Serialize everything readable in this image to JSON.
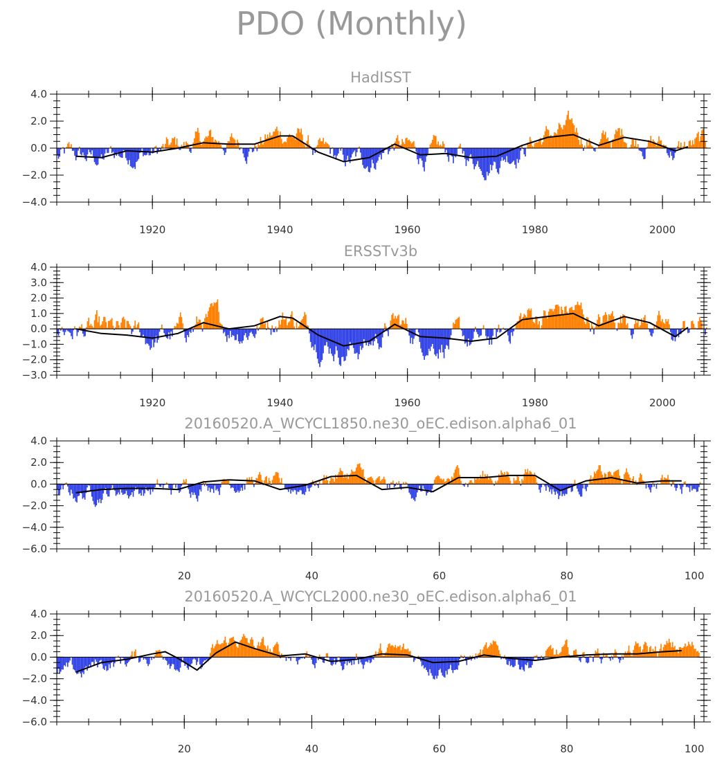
{
  "figure": {
    "title": "PDO (Monthly)"
  },
  "colors": {
    "positive": "#ff8000",
    "negative": "#3344e6",
    "smooth": "#000000"
  },
  "chart_data": [
    {
      "type": "bar",
      "title": "HadISST",
      "x_label_ticks": [
        "1920",
        "1940",
        "1960",
        "1980",
        "2000"
      ],
      "x_label_values": [
        1920,
        1940,
        1960,
        1980,
        2000
      ],
      "xlim": [
        1905,
        2006.5
      ],
      "ylim": [
        -4,
        4
      ],
      "y_tick_labels": [
        "4.0",
        "2.0",
        "0.0",
        "−2.0",
        "−4.0"
      ],
      "y_tick_values": [
        4,
        2,
        0,
        -2,
        -4
      ],
      "smooth_x": [
        1908,
        1912,
        1916,
        1920,
        1924,
        1928,
        1932,
        1936,
        1940,
        1942,
        1946,
        1950,
        1954,
        1958,
        1962,
        1966,
        1970,
        1974,
        1978,
        1982,
        1986,
        1990,
        1994,
        1998,
        2002,
        2004
      ],
      "smooth_y": [
        -0.6,
        -0.7,
        -0.2,
        -0.3,
        0.0,
        0.4,
        0.3,
        0.3,
        0.9,
        0.9,
        -0.3,
        -1.0,
        -0.7,
        0.3,
        -0.5,
        -0.4,
        -0.7,
        -0.6,
        0.2,
        0.8,
        1.0,
        0.2,
        0.8,
        0.5,
        -0.2,
        0.1
      ]
    },
    {
      "type": "bar",
      "title": "ERSSTv3b",
      "x_label_ticks": [
        "1920",
        "1940",
        "1960",
        "1980",
        "2000"
      ],
      "x_label_values": [
        1920,
        1940,
        1960,
        1980,
        2000
      ],
      "xlim": [
        1905,
        2006.5
      ],
      "ylim": [
        -3,
        4
      ],
      "y_tick_labels": [
        "4.0",
        "3.0",
        "2.0",
        "1.0",
        "0.0",
        "−1.0",
        "−2.0",
        "−3.0"
      ],
      "y_tick_values": [
        4,
        3,
        2,
        1,
        0,
        -1,
        -2,
        -3
      ],
      "smooth_x": [
        1908,
        1912,
        1916,
        1920,
        1924,
        1928,
        1932,
        1936,
        1940,
        1942,
        1946,
        1950,
        1954,
        1958,
        1962,
        1966,
        1970,
        1974,
        1978,
        1982,
        1986,
        1990,
        1994,
        1998,
        2002,
        2004
      ],
      "smooth_y": [
        0.0,
        -0.3,
        -0.4,
        -0.6,
        -0.3,
        0.4,
        0.0,
        0.2,
        0.8,
        0.7,
        -0.4,
        -1.1,
        -0.8,
        0.3,
        -0.5,
        -0.6,
        -0.8,
        -0.6,
        0.6,
        0.8,
        1.0,
        0.2,
        0.8,
        0.4,
        -0.5,
        0.1
      ]
    },
    {
      "type": "bar",
      "title": "20160520.A_WCYCL1850.ne30_oEC.edison.alpha6_01",
      "x_label_ticks": [
        "20",
        "40",
        "60",
        "80",
        "100"
      ],
      "x_label_values": [
        20,
        40,
        60,
        80,
        100
      ],
      "xlim": [
        0,
        101.5
      ],
      "ylim": [
        -6,
        4
      ],
      "y_tick_labels": [
        "4.0",
        "2.0",
        "0.0",
        "−2.0",
        "−4.0",
        "−6.0"
      ],
      "y_tick_values": [
        4,
        2,
        0,
        -2,
        -4,
        -6
      ],
      "smooth_x": [
        3,
        7,
        11,
        15,
        19,
        23,
        27,
        31,
        35,
        39,
        43,
        47,
        51,
        55,
        59,
        63,
        67,
        71,
        75,
        79,
        83,
        87,
        91,
        95,
        98
      ],
      "smooth_y": [
        -0.8,
        -0.5,
        -0.4,
        -0.4,
        -0.5,
        0.2,
        0.4,
        0.3,
        -0.5,
        -0.1,
        0.7,
        0.8,
        -0.5,
        -0.3,
        -0.7,
        0.6,
        0.6,
        0.8,
        0.8,
        -0.6,
        0.3,
        0.6,
        0.1,
        0.3,
        0.3
      ]
    },
    {
      "type": "bar",
      "title": "20160520.A_WCYCL2000.ne30_oEC.edison.alpha6_01",
      "x_label_ticks": [
        "20",
        "40",
        "60",
        "80",
        "100"
      ],
      "x_label_values": [
        20,
        40,
        60,
        80,
        100
      ],
      "xlim": [
        0,
        101.5
      ],
      "ylim": [
        -6,
        4
      ],
      "y_tick_labels": [
        "4.0",
        "2.0",
        "0.0",
        "−2.0",
        "−4.0",
        "−6.0"
      ],
      "y_tick_values": [
        4,
        2,
        0,
        -2,
        -4,
        -6
      ],
      "smooth_x": [
        3,
        7,
        11,
        15,
        17,
        19,
        22,
        25,
        28,
        31,
        35,
        39,
        43,
        47,
        51,
        55,
        59,
        63,
        67,
        71,
        75,
        79,
        83,
        87,
        91,
        95,
        98
      ],
      "smooth_y": [
        -1.4,
        -0.5,
        -0.2,
        0.3,
        0.5,
        -0.1,
        -1.2,
        0.4,
        1.4,
        0.8,
        0.1,
        0.3,
        -0.4,
        -0.2,
        0.3,
        0.2,
        -0.5,
        -0.4,
        0.2,
        -0.1,
        -0.3,
        0.0,
        0.2,
        0.3,
        0.3,
        0.5,
        0.6
      ]
    }
  ]
}
